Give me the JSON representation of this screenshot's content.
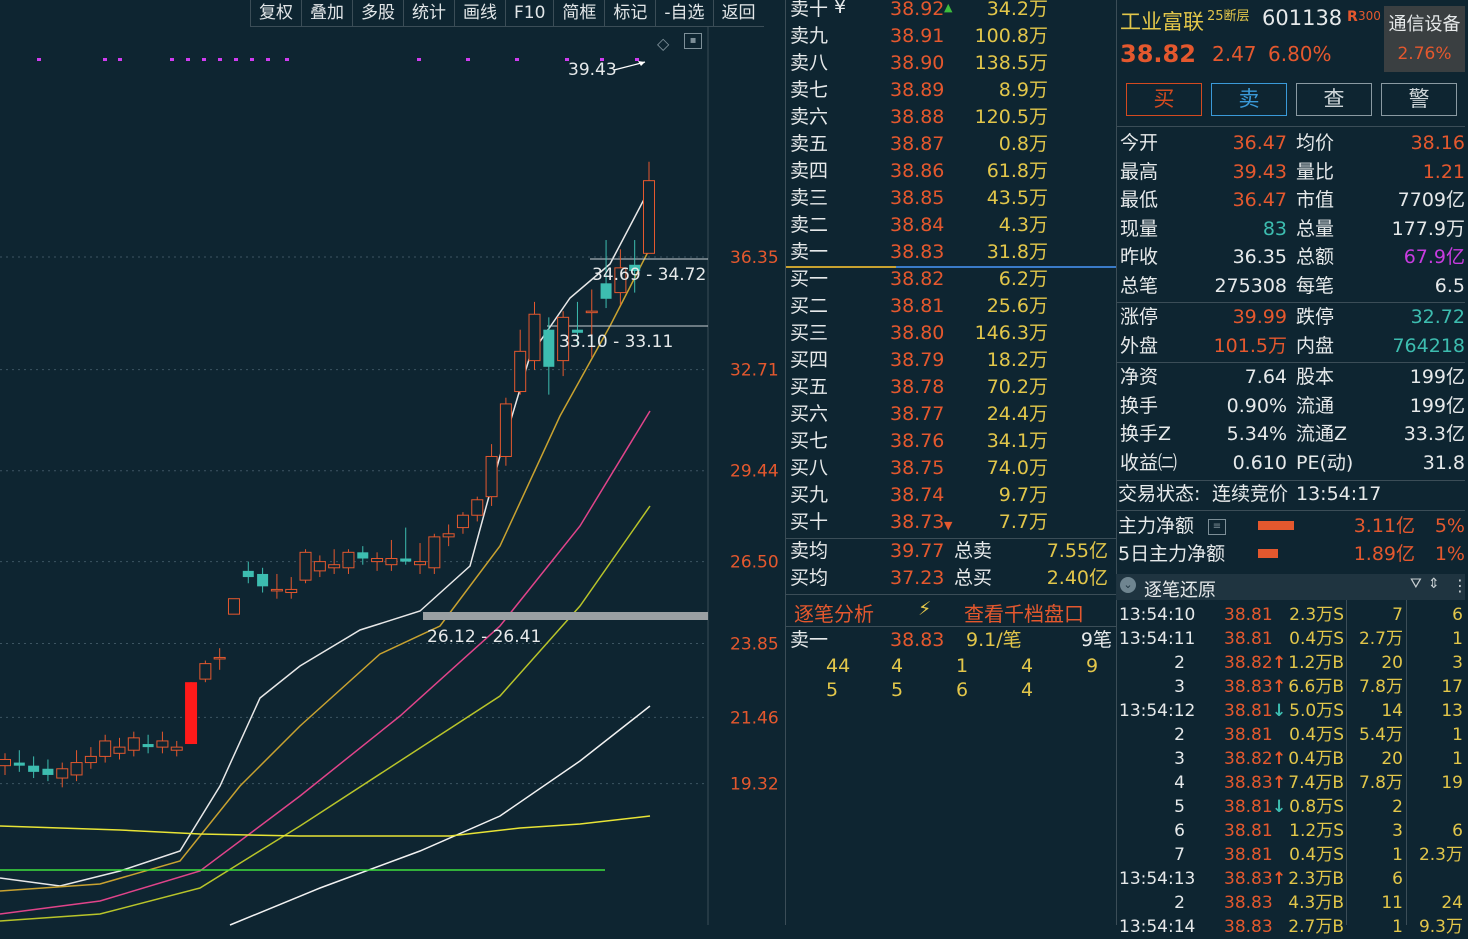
{
  "toolbar": [
    "复权",
    "叠加",
    "多股",
    "统计",
    "画线",
    "F10",
    "简框",
    "标记",
    "-自选",
    "返回"
  ],
  "chart": {
    "price_labels": [
      "36.35",
      "32.71",
      "29.44",
      "26.50",
      "23.85",
      "21.46",
      "19.32"
    ],
    "annotations": {
      "high": "39.43",
      "gap1": "34.69 - 34.72",
      "gap2": "33.10 - 33.11",
      "gap3": "26.12 - 26.41"
    }
  },
  "chart_data": {
    "type": "candlestick",
    "y_ticks": [
      36.35,
      32.71,
      29.44,
      26.5,
      23.85,
      21.46,
      19.32
    ],
    "candles": [
      {
        "o": 19.9,
        "h": 20.3,
        "l": 19.6,
        "c": 20.1
      },
      {
        "o": 20.0,
        "h": 20.4,
        "l": 19.7,
        "c": 19.9
      },
      {
        "o": 19.9,
        "h": 20.2,
        "l": 19.5,
        "c": 19.7
      },
      {
        "o": 19.8,
        "h": 20.1,
        "l": 19.4,
        "c": 19.6
      },
      {
        "o": 19.5,
        "h": 20.0,
        "l": 19.2,
        "c": 19.8
      },
      {
        "o": 19.6,
        "h": 20.4,
        "l": 19.4,
        "c": 20.0
      },
      {
        "o": 20.0,
        "h": 20.5,
        "l": 19.8,
        "c": 20.2
      },
      {
        "o": 20.2,
        "h": 20.9,
        "l": 20.0,
        "c": 20.7
      },
      {
        "o": 20.3,
        "h": 20.8,
        "l": 20.1,
        "c": 20.5
      },
      {
        "o": 20.4,
        "h": 21.0,
        "l": 20.2,
        "c": 20.8
      },
      {
        "o": 20.6,
        "h": 20.9,
        "l": 20.3,
        "c": 20.5
      },
      {
        "o": 20.5,
        "h": 21.0,
        "l": 20.3,
        "c": 20.7
      },
      {
        "o": 20.4,
        "h": 20.7,
        "l": 20.2,
        "c": 20.5
      },
      {
        "o": 20.6,
        "h": 22.6,
        "l": 20.6,
        "c": 22.6
      },
      {
        "o": 22.7,
        "h": 23.3,
        "l": 22.6,
        "c": 23.2
      },
      {
        "o": 23.4,
        "h": 23.7,
        "l": 23.0,
        "c": 23.4
      },
      {
        "o": 24.8,
        "h": 25.3,
        "l": 24.8,
        "c": 25.3
      },
      {
        "o": 26.2,
        "h": 26.5,
        "l": 25.8,
        "c": 26.0
      },
      {
        "o": 26.1,
        "h": 26.3,
        "l": 25.5,
        "c": 25.7
      },
      {
        "o": 25.6,
        "h": 26.1,
        "l": 25.3,
        "c": 25.6
      },
      {
        "o": 25.5,
        "h": 26.0,
        "l": 25.3,
        "c": 25.6
      },
      {
        "o": 25.9,
        "h": 26.9,
        "l": 25.8,
        "c": 26.8
      },
      {
        "o": 26.2,
        "h": 26.7,
        "l": 26.0,
        "c": 26.5
      },
      {
        "o": 26.3,
        "h": 26.9,
        "l": 26.1,
        "c": 26.4
      },
      {
        "o": 26.3,
        "h": 26.9,
        "l": 26.1,
        "c": 26.8
      },
      {
        "o": 26.8,
        "h": 27.0,
        "l": 26.4,
        "c": 26.6
      },
      {
        "o": 26.5,
        "h": 26.8,
        "l": 26.2,
        "c": 26.6
      },
      {
        "o": 26.4,
        "h": 27.2,
        "l": 26.2,
        "c": 26.6
      },
      {
        "o": 26.6,
        "h": 27.6,
        "l": 26.4,
        "c": 26.5
      },
      {
        "o": 26.4,
        "h": 27.1,
        "l": 26.1,
        "c": 26.5
      },
      {
        "o": 26.3,
        "h": 27.4,
        "l": 26.1,
        "c": 27.3
      },
      {
        "o": 27.3,
        "h": 27.7,
        "l": 27.0,
        "c": 27.4
      },
      {
        "o": 27.6,
        "h": 28.1,
        "l": 27.4,
        "c": 28.0
      },
      {
        "o": 28.0,
        "h": 28.6,
        "l": 27.8,
        "c": 28.5
      },
      {
        "o": 28.6,
        "h": 30.3,
        "l": 28.3,
        "c": 29.9
      },
      {
        "o": 29.9,
        "h": 31.8,
        "l": 29.6,
        "c": 31.6
      },
      {
        "o": 32.0,
        "h": 34.0,
        "l": 31.9,
        "c": 33.3
      },
      {
        "o": 33.0,
        "h": 34.9,
        "l": 32.7,
        "c": 34.5
      },
      {
        "o": 34.0,
        "h": 34.4,
        "l": 31.9,
        "c": 32.8
      },
      {
        "o": 33.0,
        "h": 34.6,
        "l": 32.5,
        "c": 34.4
      },
      {
        "o": 34.0,
        "h": 34.9,
        "l": 33.5,
        "c": 33.9
      },
      {
        "o": 34.6,
        "h": 35.3,
        "l": 33.1,
        "c": 34.6
      },
      {
        "o": 35.5,
        "h": 36.9,
        "l": 34.7,
        "c": 35.0
      },
      {
        "o": 35.2,
        "h": 36.6,
        "l": 34.8,
        "c": 36.0
      },
      {
        "o": 36.1,
        "h": 36.9,
        "l": 35.2,
        "c": 35.9
      },
      {
        "o": 36.47,
        "h": 39.43,
        "l": 36.47,
        "c": 38.82
      }
    ]
  },
  "book": {
    "asks": [
      {
        "label": "卖十",
        "price": "38.92",
        "vol": "34.2万"
      },
      {
        "label": "卖九",
        "price": "38.91",
        "vol": "100.8万"
      },
      {
        "label": "卖八",
        "price": "38.90",
        "vol": "138.5万"
      },
      {
        "label": "卖七",
        "price": "38.89",
        "vol": "8.9万"
      },
      {
        "label": "卖六",
        "price": "38.88",
        "vol": "120.5万"
      },
      {
        "label": "卖五",
        "price": "38.87",
        "vol": "0.8万"
      },
      {
        "label": "卖四",
        "price": "38.86",
        "vol": "61.8万"
      },
      {
        "label": "卖三",
        "price": "38.85",
        "vol": "43.5万"
      },
      {
        "label": "卖二",
        "price": "38.84",
        "vol": "4.3万"
      },
      {
        "label": "卖一",
        "price": "38.83",
        "vol": "31.8万"
      }
    ],
    "bids": [
      {
        "label": "买一",
        "price": "38.82",
        "vol": "6.2万"
      },
      {
        "label": "买二",
        "price": "38.81",
        "vol": "25.6万"
      },
      {
        "label": "买三",
        "price": "38.80",
        "vol": "146.3万"
      },
      {
        "label": "买四",
        "price": "38.79",
        "vol": "18.2万"
      },
      {
        "label": "买五",
        "price": "38.78",
        "vol": "70.2万"
      },
      {
        "label": "买六",
        "price": "38.77",
        "vol": "24.4万"
      },
      {
        "label": "买七",
        "price": "38.76",
        "vol": "34.1万"
      },
      {
        "label": "买八",
        "price": "38.75",
        "vol": "74.0万"
      },
      {
        "label": "买九",
        "price": "38.74",
        "vol": "9.7万"
      },
      {
        "label": "买十",
        "price": "38.73",
        "vol": "7.7万"
      }
    ],
    "ask_yen": "¥",
    "avg_sell_label": "卖均",
    "avg_sell": "39.77",
    "total_sell_label": "总卖",
    "total_sell": "7.55亿",
    "avg_buy_label": "买均",
    "avg_buy": "37.23",
    "total_buy_label": "总买",
    "total_buy": "2.40亿",
    "analysis_tab": "逐笔分析",
    "depth_tab": "查看千档盘口",
    "queue_label": "卖一",
    "queue_price": "38.83",
    "queue_avg": "9.1/笔",
    "queue_count": "9笔",
    "queue_row1": [
      "44",
      "4",
      "1",
      "4",
      "9"
    ],
    "queue_row2": [
      "5",
      "5",
      "6",
      "4"
    ]
  },
  "info": {
    "name": "工业富联",
    "sup": "25断层",
    "code": "601138",
    "badge": "R",
    "badge_num": "300",
    "sector": "通信设备",
    "sector_pct": "2.76%",
    "price": "38.82",
    "change": "2.47",
    "pct": "6.80%",
    "buttons": [
      "买",
      "卖",
      "查",
      "警"
    ],
    "rows": [
      [
        "今开",
        "36.47",
        "均价",
        "38.16"
      ],
      [
        "最高",
        "39.43",
        "量比",
        "1.21"
      ],
      [
        "最低",
        "36.47",
        "市值",
        "7709亿"
      ],
      [
        "现量",
        "83",
        "总量",
        "177.9万"
      ],
      [
        "昨收",
        "36.35",
        "总额",
        "67.9亿"
      ],
      [
        "总笔",
        "275308",
        "每笔",
        "6.5"
      ]
    ],
    "rows2": [
      [
        "涨停",
        "39.99",
        "跌停",
        "32.72"
      ],
      [
        "外盘",
        "101.5万",
        "内盘",
        "764218"
      ]
    ],
    "rows3": [
      [
        "净资",
        "7.64",
        "股本",
        "199亿"
      ],
      [
        "换手",
        "0.90%",
        "流通",
        "199亿"
      ],
      [
        "换手Z",
        "5.34%",
        "流通Z",
        "33.3亿"
      ],
      [
        "收益㈡",
        "0.610",
        "PE(动)",
        "31.8"
      ]
    ],
    "status_label": "交易状态:",
    "status": "连续竞价",
    "status_time": "13:54:17",
    "main_net_label": "主力净额",
    "main_net": "3.11亿",
    "main_net_pct": "5%",
    "main5_label": "5日主力净额",
    "main5": "1.89亿",
    "main5_pct": "1%",
    "ticks_title": "逐笔还原",
    "ticks": [
      {
        "t": "13:54:10",
        "p": "38.81",
        "a": "",
        "v": "2.3万S",
        "n": "7",
        "g": "6"
      },
      {
        "t": "13:54:11",
        "p": "38.81",
        "a": "",
        "v": "0.4万S",
        "n": "2.7万",
        "g": "1"
      },
      {
        "t": "2",
        "p": "38.82",
        "a": "up",
        "v": "1.2万B",
        "n": "20",
        "g": "3"
      },
      {
        "t": "3",
        "p": "38.83",
        "a": "up",
        "v": "6.6万B",
        "n": "7.8万",
        "g": "17"
      },
      {
        "t": "13:54:12",
        "p": "38.81",
        "a": "down",
        "v": "5.0万S",
        "n": "14",
        "g": "13"
      },
      {
        "t": "2",
        "p": "38.81",
        "a": "",
        "v": "0.4万S",
        "n": "5.4万",
        "g": "1"
      },
      {
        "t": "3",
        "p": "38.82",
        "a": "up",
        "v": "0.4万B",
        "n": "20",
        "g": "1"
      },
      {
        "t": "4",
        "p": "38.83",
        "a": "up",
        "v": "7.4万B",
        "n": "7.8万",
        "g": "19"
      },
      {
        "t": "5",
        "p": "38.81",
        "a": "down",
        "v": "0.8万S",
        "n": "2",
        "g": ""
      },
      {
        "t": "6",
        "p": "38.81",
        "a": "",
        "v": "1.2万S",
        "n": "3",
        "g": "6"
      },
      {
        "t": "7",
        "p": "38.81",
        "a": "",
        "v": "0.4万S",
        "n": "1",
        "g": "2.3万"
      },
      {
        "t": "13:54:13",
        "p": "38.83",
        "a": "up",
        "v": "2.3万B",
        "n": "6",
        "g": ""
      },
      {
        "t": "2",
        "p": "38.83",
        "a": "",
        "v": "4.3万B",
        "n": "11",
        "g": "24"
      },
      {
        "t": "13:54:14",
        "p": "38.83",
        "a": "",
        "v": "2.7万B",
        "n": "1",
        "g": "9.3万"
      }
    ]
  }
}
